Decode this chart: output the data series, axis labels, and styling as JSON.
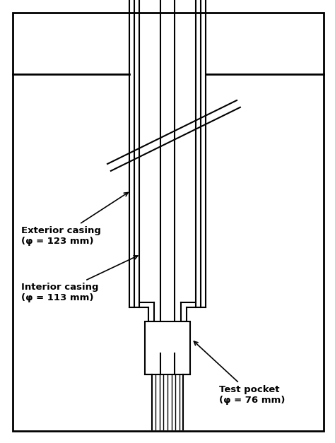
{
  "bg_color": "#ffffff",
  "line_color": "#000000",
  "fig_width": 4.74,
  "fig_height": 6.27,
  "dpi": 100,
  "labels": {
    "exterior_casing": "Exterior casing\n(φ = 123 mm)",
    "interior_casing": "Interior casing\n(φ = 113 mm)",
    "test_pocket": "Test pocket\n(φ = 76 mm)"
  }
}
